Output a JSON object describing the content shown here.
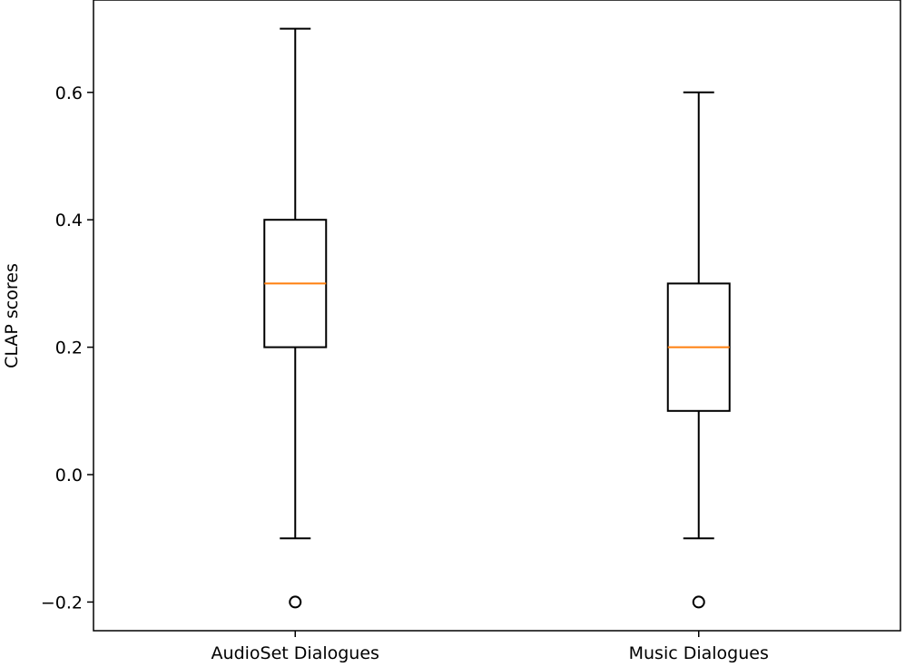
{
  "chart_data": {
    "type": "box",
    "title": "",
    "xlabel": "",
    "ylabel": "CLAP scores",
    "ylim": [
      -0.245,
      0.745
    ],
    "yticks": [
      -0.2,
      0.0,
      0.2,
      0.4,
      0.6
    ],
    "ytick_labels": [
      "−0.2",
      "0.0",
      "0.2",
      "0.4",
      "0.6"
    ],
    "categories": [
      "AudioSet Dialogues",
      "Music Dialogues"
    ],
    "boxes": [
      {
        "category": "AudioSet Dialogues",
        "whisker_low": -0.1,
        "q1": 0.2,
        "median": 0.3,
        "q3": 0.4,
        "whisker_high": 0.7,
        "outliers": [
          -0.2
        ]
      },
      {
        "category": "Music Dialogues",
        "whisker_low": -0.1,
        "q1": 0.1,
        "median": 0.2,
        "q3": 0.3,
        "whisker_high": 0.6,
        "outliers": [
          -0.2
        ]
      }
    ],
    "grid": false,
    "colors": {
      "box": "#000000",
      "median": "#ff7f0e",
      "outlier": "#000000"
    }
  }
}
